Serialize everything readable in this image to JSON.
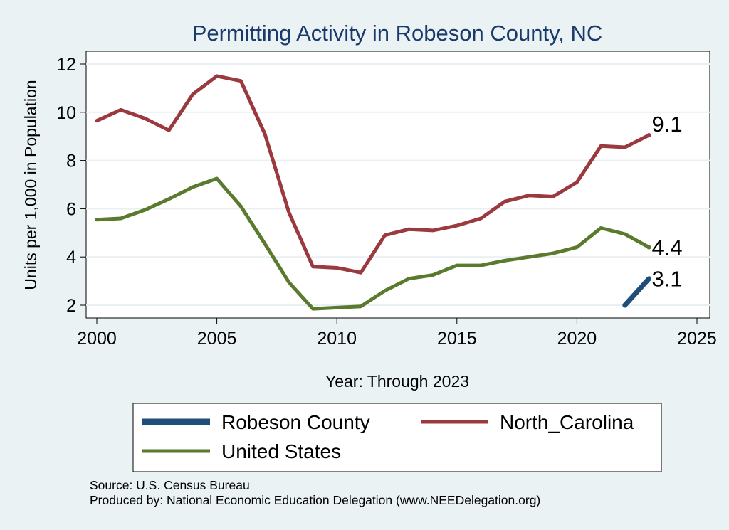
{
  "chart_data": {
    "type": "line",
    "title": "Permitting Activity in Robeson County, NC",
    "xlabel": "Year: Through 2023",
    "ylabel": "Units per 1,000 in Population",
    "xlim": [
      2000,
      2025
    ],
    "ylim": [
      1.5,
      12.5
    ],
    "x_ticks": [
      "2000",
      "2005",
      "2010",
      "2015",
      "2020",
      "2025"
    ],
    "y_ticks": [
      "2",
      "4",
      "6",
      "8",
      "10",
      "12"
    ],
    "grid": true,
    "legend_position": "bottom",
    "series": [
      {
        "name": "Robeson County",
        "color": "#1f4e79",
        "x": [
          2022,
          2023
        ],
        "values": [
          2.0,
          3.1
        ],
        "end_label": "3.1"
      },
      {
        "name": "North_Carolina",
        "color": "#9b3a3e",
        "x": [
          2000,
          2001,
          2002,
          2003,
          2004,
          2005,
          2006,
          2007,
          2008,
          2009,
          2010,
          2011,
          2012,
          2013,
          2014,
          2015,
          2016,
          2017,
          2018,
          2019,
          2020,
          2021,
          2022,
          2023
        ],
        "values": [
          9.65,
          10.1,
          9.75,
          9.25,
          10.75,
          11.5,
          11.3,
          9.1,
          5.85,
          3.6,
          3.55,
          3.35,
          4.9,
          5.15,
          5.1,
          5.3,
          5.6,
          6.3,
          6.55,
          6.5,
          7.1,
          8.6,
          8.55,
          9.05
        ],
        "end_label": "9.1"
      },
      {
        "name": "United States",
        "color": "#5a7a2e",
        "x": [
          2000,
          2001,
          2002,
          2003,
          2004,
          2005,
          2006,
          2007,
          2008,
          2009,
          2010,
          2011,
          2012,
          2013,
          2014,
          2015,
          2016,
          2017,
          2018,
          2019,
          2020,
          2021,
          2022,
          2023
        ],
        "values": [
          5.55,
          5.6,
          5.95,
          6.4,
          6.9,
          7.25,
          6.1,
          4.55,
          2.95,
          1.85,
          1.9,
          1.95,
          2.6,
          3.1,
          3.25,
          3.65,
          3.65,
          3.85,
          4.0,
          4.15,
          4.4,
          5.2,
          4.95,
          4.4
        ],
        "end_label": "4.4"
      }
    ],
    "notes": [
      "Source: U.S. Census Bureau",
      "Produced by: National Economic Education Delegation (www.NEEDelegation.org)"
    ]
  }
}
